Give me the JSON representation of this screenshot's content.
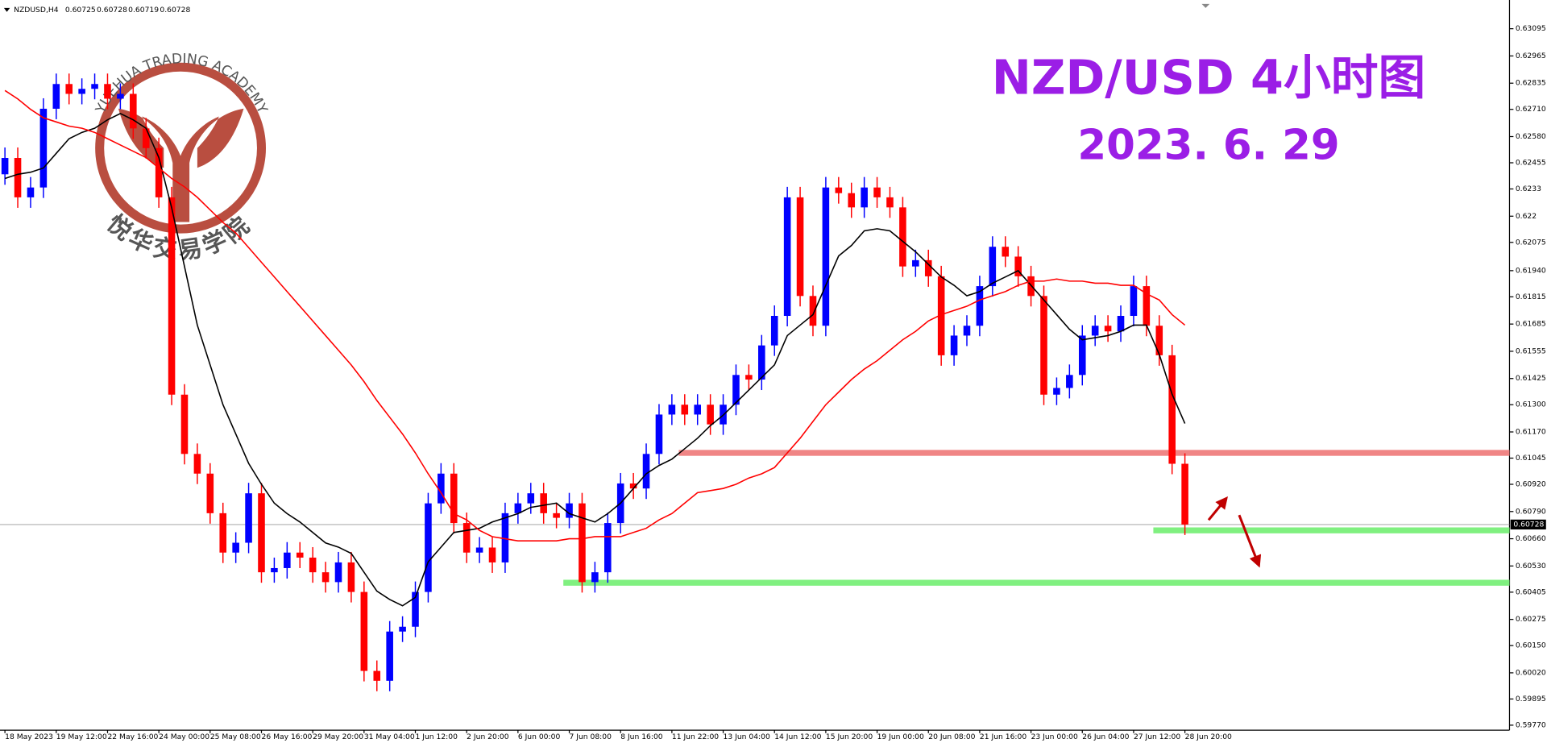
{
  "chart_data": {
    "type": "candlestick",
    "title": "NZD/USD 4小时图",
    "subtitle": "2023. 6. 29",
    "symbol": "NZDUSD,H4",
    "quote": {
      "open": 0.60725,
      "high": 0.60728,
      "low": 0.60719,
      "close": 0.60728
    },
    "watermark": {
      "text": "YUEHUA TRADING ACADEMY",
      "text_cn": "悦华交易学院",
      "color": "#b23b2c"
    },
    "categories": [
      "18 May 2023",
      null,
      null,
      null,
      "19 May 12:00",
      null,
      null,
      null,
      "22 May 16:00",
      null,
      null,
      null,
      "24 May 00:00",
      null,
      null,
      null,
      "25 May 08:00",
      null,
      null,
      null,
      "26 May 16:00",
      null,
      null,
      null,
      "29 May 20:00",
      null,
      null,
      null,
      "31 May 04:00",
      null,
      null,
      null,
      "1 Jun 12:00",
      null,
      null,
      null,
      "2 Jun 20:00",
      null,
      null,
      null,
      "6 Jun 00:00",
      null,
      null,
      null,
      "7 Jun 08:00",
      null,
      null,
      null,
      "8 Jun 16:00",
      null,
      null,
      null,
      "11 Jun 22:00",
      null,
      null,
      null,
      "13 Jun 04:00",
      null,
      null,
      null,
      "14 Jun 12:00",
      null,
      null,
      null,
      "15 Jun 20:00",
      null,
      null,
      null,
      "19 Jun 00:00",
      null,
      null,
      null,
      "20 Jun 08:00",
      null,
      null,
      null,
      "21 Jun 16:00",
      null,
      null,
      null,
      "23 Jun 00:00",
      null,
      null,
      null,
      "26 Jun 04:00",
      null,
      null,
      null,
      "27 Jun 12:00",
      null,
      null,
      null,
      "28 Jun 20:00"
    ],
    "open": [
      0.624,
      0.62478,
      0.6229,
      0.62337,
      0.62713,
      0.62831,
      0.62784,
      0.62808,
      0.62831,
      0.62761,
      0.62784,
      0.62619,
      0.62525,
      0.6229,
      0.61348,
      0.61065,
      0.60971,
      0.60782,
      0.60594,
      0.60641,
      0.60877,
      0.605,
      0.6052,
      0.60594,
      0.6057,
      0.605,
      0.60453,
      0.60547,
      0.60406,
      0.60029,
      0.59982,
      0.60217,
      0.6024,
      0.60406,
      0.60829,
      0.60971,
      0.60735,
      0.60594,
      0.60618,
      0.60547,
      0.60782,
      0.60829,
      0.60877,
      0.60782,
      0.6076,
      0.60829,
      0.60453,
      0.605,
      0.60735,
      0.60924,
      0.609,
      0.61065,
      0.61253,
      0.613,
      0.61253,
      0.613,
      0.61206,
      0.613,
      0.61442,
      0.6142,
      0.61583,
      0.61724,
      0.6229,
      0.61819,
      0.61677,
      0.62337,
      0.6231,
      0.62242,
      0.62337,
      0.6229,
      0.62242,
      0.6196,
      0.6199,
      0.61913,
      0.61536,
      0.6163,
      0.61677,
      0.61866,
      0.62054,
      0.62007,
      0.61913,
      0.61819,
      0.61348,
      0.6138,
      0.61442,
      0.6163,
      0.61677,
      0.6165,
      0.61724,
      0.61866,
      0.61677,
      0.61536,
      0.61018
    ],
    "high": [
      0.62528,
      0.62528,
      0.62387,
      0.62763,
      0.62881,
      0.62881,
      0.62858,
      0.62881,
      0.62881,
      0.62834,
      0.62834,
      0.62669,
      0.62575,
      0.6234,
      0.61398,
      0.61115,
      0.61021,
      0.60832,
      0.60691,
      0.60927,
      0.60927,
      0.6057,
      0.60644,
      0.60644,
      0.6062,
      0.6055,
      0.60597,
      0.60597,
      0.60456,
      0.60079,
      0.60267,
      0.6029,
      0.60456,
      0.60879,
      0.61021,
      0.61021,
      0.60785,
      0.60668,
      0.60668,
      0.60832,
      0.60879,
      0.60927,
      0.60927,
      0.60832,
      0.60879,
      0.60879,
      0.6055,
      0.60785,
      0.60974,
      0.60974,
      0.61115,
      0.61303,
      0.6135,
      0.6135,
      0.6135,
      0.6135,
      0.6135,
      0.61492,
      0.61492,
      0.61633,
      0.61774,
      0.6234,
      0.6234,
      0.61869,
      0.62387,
      0.62387,
      0.6236,
      0.62387,
      0.62387,
      0.6234,
      0.62292,
      0.6204,
      0.6204,
      0.61963,
      0.6168,
      0.61727,
      0.61916,
      0.62104,
      0.62104,
      0.62057,
      0.61963,
      0.61869,
      0.6143,
      0.61492,
      0.6168,
      0.61727,
      0.61727,
      0.61774,
      0.61916,
      0.61916,
      0.61727,
      0.61586,
      0.61068
    ],
    "low": [
      0.6235,
      0.6224,
      0.6224,
      0.62287,
      0.62663,
      0.62734,
      0.62734,
      0.62758,
      0.62711,
      0.62711,
      0.62569,
      0.62475,
      0.6224,
      0.61298,
      0.61015,
      0.60921,
      0.60732,
      0.60544,
      0.60544,
      0.60591,
      0.6045,
      0.6045,
      0.6047,
      0.6052,
      0.6045,
      0.60403,
      0.60403,
      0.60356,
      0.59979,
      0.59932,
      0.59932,
      0.60167,
      0.6019,
      0.60356,
      0.60779,
      0.60685,
      0.60544,
      0.60544,
      0.60497,
      0.60497,
      0.60732,
      0.60779,
      0.60732,
      0.6071,
      0.6071,
      0.60403,
      0.60403,
      0.6045,
      0.60685,
      0.6085,
      0.6085,
      0.61015,
      0.61203,
      0.61203,
      0.61203,
      0.61156,
      0.61156,
      0.6125,
      0.6137,
      0.6137,
      0.61533,
      0.61674,
      0.61769,
      0.61627,
      0.61627,
      0.6226,
      0.62192,
      0.62192,
      0.6224,
      0.62192,
      0.6191,
      0.6191,
      0.61863,
      0.61486,
      0.61486,
      0.6158,
      0.61627,
      0.61816,
      0.61957,
      0.61863,
      0.61769,
      0.61298,
      0.61298,
      0.6133,
      0.61392,
      0.6158,
      0.616,
      0.616,
      0.61674,
      0.61627,
      0.61486,
      0.60968,
      0.60678
    ],
    "close": [
      0.62478,
      0.6229,
      0.62337,
      0.62713,
      0.62831,
      0.62784,
      0.62808,
      0.62831,
      0.62761,
      0.62784,
      0.62619,
      0.62525,
      0.6229,
      0.61348,
      0.61065,
      0.60971,
      0.60782,
      0.60594,
      0.60641,
      0.60877,
      0.605,
      0.6052,
      0.60594,
      0.6057,
      0.605,
      0.60453,
      0.60547,
      0.60406,
      0.60029,
      0.59982,
      0.60217,
      0.6024,
      0.60406,
      0.60829,
      0.60971,
      0.60735,
      0.60594,
      0.60618,
      0.60547,
      0.60782,
      0.60829,
      0.60877,
      0.60782,
      0.6076,
      0.60829,
      0.60453,
      0.605,
      0.60735,
      0.60924,
      0.609,
      0.61065,
      0.61253,
      0.613,
      0.61253,
      0.613,
      0.61206,
      0.613,
      0.61442,
      0.6142,
      0.61583,
      0.61724,
      0.6229,
      0.61819,
      0.61677,
      0.62337,
      0.6231,
      0.62242,
      0.62337,
      0.6229,
      0.62242,
      0.6196,
      0.6199,
      0.61913,
      0.61536,
      0.6163,
      0.61677,
      0.61866,
      0.62054,
      0.62007,
      0.61913,
      0.61819,
      0.61348,
      0.6138,
      0.61442,
      0.6163,
      0.61677,
      0.6165,
      0.61724,
      0.61866,
      0.61677,
      0.61536,
      0.61018,
      0.60728
    ],
    "up_color": "#0000ff",
    "down_color": "#ff0000",
    "series": [
      {
        "color": "#000000",
        "values": [
          0.6238,
          0.624,
          0.6241,
          0.6243,
          0.625,
          0.6257,
          0.626,
          0.6262,
          0.6266,
          0.6269,
          0.6266,
          0.6262,
          0.6248,
          0.6224,
          0.6196,
          0.6168,
          0.6149,
          0.613,
          0.6116,
          0.6102,
          0.6092,
          0.6083,
          0.6078,
          0.6074,
          0.6069,
          0.6064,
          0.6062,
          0.6059,
          0.605,
          0.6041,
          0.6037,
          0.6034,
          0.6038,
          0.6055,
          0.6062,
          0.6069,
          0.607,
          0.6071,
          0.6074,
          0.6076,
          0.6078,
          0.6081,
          0.6082,
          0.6083,
          0.6078,
          0.6076,
          0.6074,
          0.6078,
          0.6083,
          0.609,
          0.6097,
          0.6101,
          0.6104,
          0.6109,
          0.6114,
          0.612,
          0.6125,
          0.6131,
          0.6137,
          0.6143,
          0.6149,
          0.6163,
          0.6168,
          0.6173,
          0.6187,
          0.6201,
          0.6206,
          0.6213,
          0.6214,
          0.6213,
          0.6208,
          0.6203,
          0.6197,
          0.6191,
          0.6187,
          0.6182,
          0.6184,
          0.6188,
          0.6191,
          0.6194,
          0.6187,
          0.618,
          0.6173,
          0.6166,
          0.6161,
          0.6162,
          0.6163,
          0.6165,
          0.6168,
          0.6168,
          0.6154,
          0.6135,
          0.6121
        ]
      },
      {
        "color": "#ff0000",
        "values": [
          0.628,
          0.6276,
          0.6271,
          0.6267,
          0.6265,
          0.6263,
          0.6262,
          0.626,
          0.6257,
          0.6254,
          0.6251,
          0.6248,
          0.6243,
          0.6238,
          0.6234,
          0.6229,
          0.6223,
          0.6217,
          0.6212,
          0.6205,
          0.6198,
          0.6191,
          0.6184,
          0.6177,
          0.617,
          0.6163,
          0.6156,
          0.6149,
          0.6141,
          0.6132,
          0.6124,
          0.6116,
          0.6107,
          0.6097,
          0.6088,
          0.6078,
          0.6075,
          0.607,
          0.6067,
          0.6066,
          0.6065,
          0.6065,
          0.6065,
          0.6065,
          0.6066,
          0.6066,
          0.6067,
          0.6067,
          0.6067,
          0.6069,
          0.6071,
          0.6075,
          0.6078,
          0.6083,
          0.6088,
          0.6089,
          0.609,
          0.6092,
          0.6095,
          0.6097,
          0.61,
          0.6107,
          0.6114,
          0.6122,
          0.613,
          0.6136,
          0.6142,
          0.6147,
          0.6151,
          0.6156,
          0.6161,
          0.6165,
          0.617,
          0.6173,
          0.6175,
          0.6177,
          0.618,
          0.6182,
          0.6184,
          0.6187,
          0.6189,
          0.6189,
          0.619,
          0.6189,
          0.6189,
          0.6188,
          0.6188,
          0.6187,
          0.6187,
          0.6183,
          0.618,
          0.6173,
          0.6168
        ]
      }
    ],
    "levels": [
      {
        "value": 0.6107,
        "color": "#f08585"
      },
      {
        "value": 0.607,
        "color": "#80f080"
      },
      {
        "value": 0.6045,
        "color": "#80f080"
      }
    ],
    "ylim": [
      0.59746,
      0.63232
    ],
    "yticks": [
      0.63095,
      0.62965,
      0.62835,
      {
        "value": 0.6271,
        "label": "0.62710"
      },
      {
        "value": 0.6258,
        "label": "0.62580"
      },
      0.62455,
      0.6233,
      0.622,
      0.62075,
      {
        "value": 0.6194,
        "label": "0.61940"
      },
      0.61815,
      0.61685,
      0.61555,
      0.61425,
      {
        "value": 0.613,
        "label": "0.61300"
      },
      {
        "value": 0.6117,
        "label": "0.61170"
      },
      0.61045,
      {
        "value": 0.6092,
        "label": "0.60920"
      },
      {
        "value": 0.6079,
        "label": "0.60790"
      },
      {
        "value": 0.6066,
        "label": "0.60660"
      },
      {
        "value": 0.6053,
        "label": "0.60530"
      },
      0.60405,
      0.60275,
      {
        "value": 0.6015,
        "label": "0.60150"
      },
      {
        "value": 0.6002,
        "label": "0.60020"
      },
      0.59895,
      {
        "value": 0.5977,
        "label": "0.59770"
      }
    ]
  }
}
